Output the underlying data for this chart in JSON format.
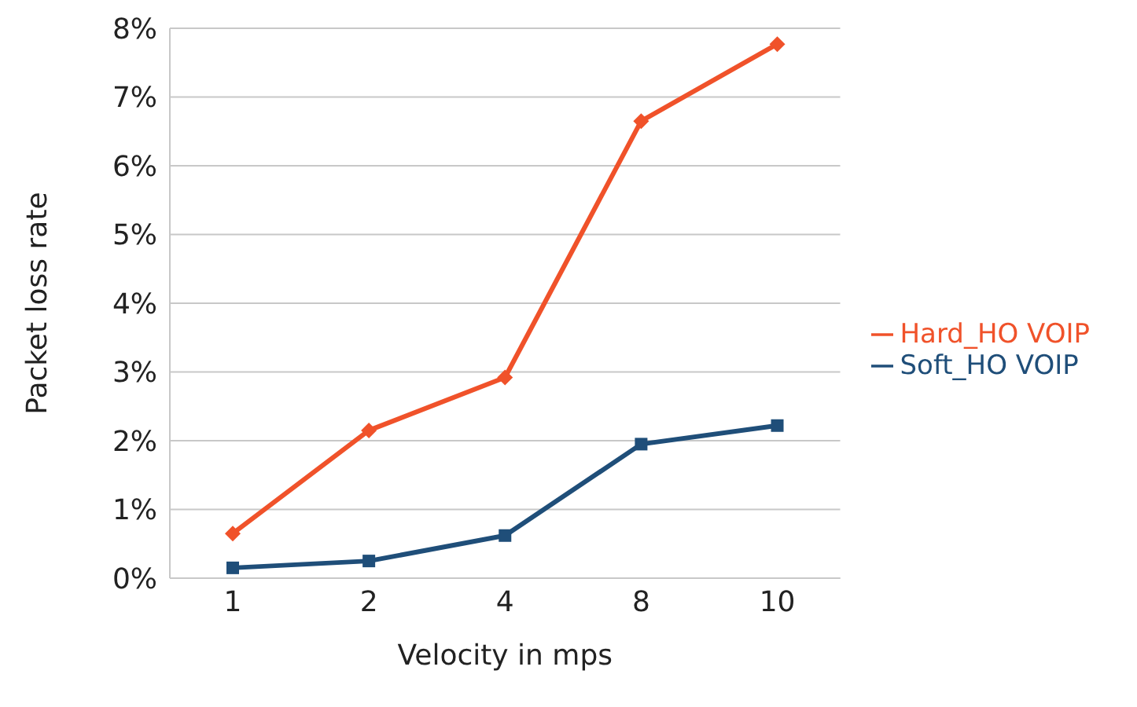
{
  "chart_data": {
    "type": "line",
    "xlabel": "Velocity in mps",
    "ylabel": "Packet loss rate",
    "categories": [
      "1",
      "2",
      "4",
      "8",
      "10"
    ],
    "series": [
      {
        "name": "Soft_HO VOIP",
        "color": "#1f4e79",
        "marker": "square",
        "values": [
          0.15,
          0.25,
          0.62,
          1.95,
          2.22
        ]
      },
      {
        "name": "Hard_HO VOIP",
        "color": "#f0522a",
        "marker": "diamond",
        "values": [
          0.65,
          2.15,
          2.92,
          6.65,
          7.77
        ]
      }
    ],
    "ylim": [
      0,
      8
    ],
    "yticks": [
      {
        "value": 0,
        "label": "0%"
      },
      {
        "value": 1,
        "label": "1%"
      },
      {
        "value": 2,
        "label": "2%"
      },
      {
        "value": 3,
        "label": "3%"
      },
      {
        "value": 4,
        "label": "4%"
      },
      {
        "value": 5,
        "label": "5%"
      },
      {
        "value": 6,
        "label": "6%"
      },
      {
        "value": 7,
        "label": "7%"
      },
      {
        "value": 8,
        "label": "8%"
      }
    ],
    "grid": "y",
    "legend": "right",
    "line_style": "solid"
  }
}
